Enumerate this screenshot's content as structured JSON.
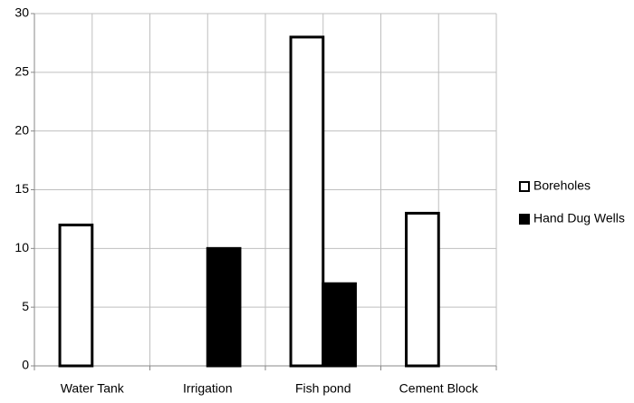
{
  "chart_data": {
    "type": "bar",
    "categories": [
      "Water Tank",
      "Irrigation",
      "Fish pond",
      "Cement Block"
    ],
    "series": [
      {
        "name": "Boreholes",
        "color": "#ffffff",
        "values": [
          12,
          0,
          28,
          13
        ]
      },
      {
        "name": "Hand Dug Wells",
        "color": "#000000",
        "values": [
          0,
          10,
          7,
          0
        ]
      }
    ],
    "ylim": [
      0,
      30
    ],
    "yticks": [
      0,
      5,
      10,
      15,
      20,
      25,
      30
    ],
    "grid": true,
    "legend": "right"
  }
}
